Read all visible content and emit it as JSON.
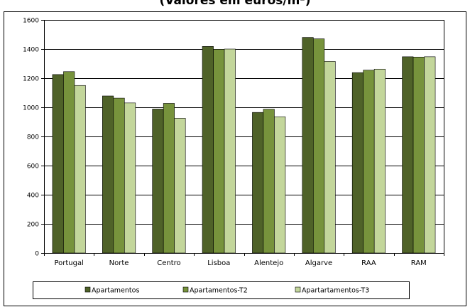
{
  "chart_data": {
    "type": "bar",
    "title": "(Valores em euros/m²)",
    "categories": [
      "Portugal",
      "Norte",
      "Centro",
      "Lisboa",
      "Alentejo",
      "Algarve",
      "RAA",
      "RAM"
    ],
    "series": [
      {
        "name": "Apartamentos",
        "color": "#4f6228",
        "values": [
          1225,
          1078,
          988,
          1418,
          965,
          1480,
          1238,
          1347
        ]
      },
      {
        "name": "Apartamentos-T2",
        "color": "#77933c",
        "values": [
          1245,
          1063,
          1027,
          1398,
          987,
          1470,
          1255,
          1345
        ]
      },
      {
        "name": "Apartartamentos-T3",
        "color": "#c3d69b",
        "values": [
          1150,
          1030,
          925,
          1400,
          935,
          1315,
          1262,
          1347
        ]
      }
    ],
    "ylim": [
      0,
      1600
    ],
    "yticks": [
      0,
      200,
      400,
      600,
      800,
      1000,
      1200,
      1400,
      1600
    ],
    "grid": true,
    "legend_position": "bottom"
  }
}
